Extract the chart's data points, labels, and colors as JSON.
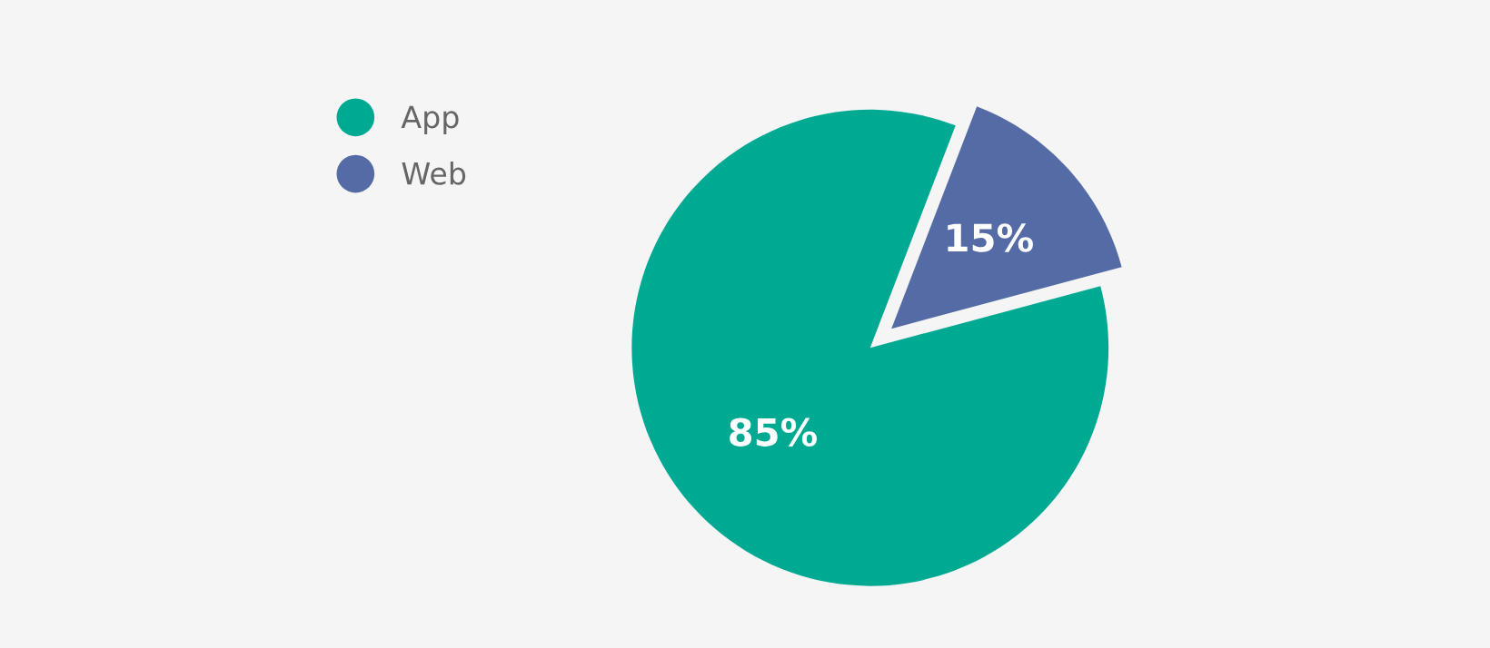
{
  "chart_data": {
    "type": "pie",
    "categories": [
      "App",
      "Web"
    ],
    "values": [
      85,
      15
    ],
    "colors": [
      "#00a992",
      "#556ba5"
    ],
    "value_labels": [
      "85%",
      "15%"
    ],
    "legend": "top left"
  }
}
